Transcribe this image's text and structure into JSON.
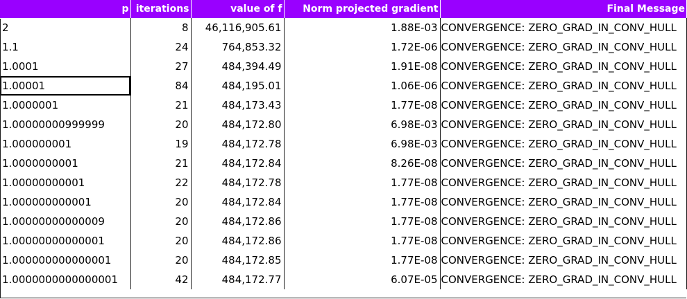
{
  "headers": {
    "p": "p",
    "iterations": "iterations",
    "value": "value of f",
    "norm": "Norm projected gradient",
    "message": "Final Message"
  },
  "selected_row_index": 3,
  "colors": {
    "header_bg": "#9900ff",
    "header_text": "#ffffff"
  },
  "rows": [
    {
      "p": "2",
      "iterations": "8",
      "value": "46,116,905.61",
      "norm": "1.88E-03",
      "message": "CONVERGENCE: ZERO_GRAD_IN_CONV_HULL"
    },
    {
      "p": "1.1",
      "iterations": "24",
      "value": "764,853.32",
      "norm": "1.72E-06",
      "message": "CONVERGENCE: ZERO_GRAD_IN_CONV_HULL"
    },
    {
      "p": "1.0001",
      "iterations": "27",
      "value": "484,394.49",
      "norm": "1.91E-08",
      "message": "CONVERGENCE: ZERO_GRAD_IN_CONV_HULL"
    },
    {
      "p": "1.00001",
      "iterations": "84",
      "value": "484,195.01",
      "norm": "1.06E-06",
      "message": "CONVERGENCE: ZERO_GRAD_IN_CONV_HULL"
    },
    {
      "p": "1.0000001",
      "iterations": "21",
      "value": "484,173.43",
      "norm": "1.77E-08",
      "message": "CONVERGENCE: ZERO_GRAD_IN_CONV_HULL"
    },
    {
      "p": "1.00000000999999",
      "iterations": "20",
      "value": "484,172.80",
      "norm": "6.98E-03",
      "message": "CONVERGENCE: ZERO_GRAD_IN_CONV_HULL"
    },
    {
      "p": "1.000000001",
      "iterations": "19",
      "value": "484,172.78",
      "norm": "6.98E-03",
      "message": "CONVERGENCE: ZERO_GRAD_IN_CONV_HULL"
    },
    {
      "p": "1.0000000001",
      "iterations": "21",
      "value": "484,172.84",
      "norm": "8.26E-08",
      "message": "CONVERGENCE: ZERO_GRAD_IN_CONV_HULL"
    },
    {
      "p": "1.00000000001",
      "iterations": "22",
      "value": "484,172.78",
      "norm": "1.77E-08",
      "message": "CONVERGENCE: ZERO_GRAD_IN_CONV_HULL"
    },
    {
      "p": "1.000000000001",
      "iterations": "20",
      "value": "484,172.84",
      "norm": "1.77E-08",
      "message": "CONVERGENCE: ZERO_GRAD_IN_CONV_HULL"
    },
    {
      "p": "1.00000000000009",
      "iterations": "20",
      "value": "484,172.86",
      "norm": "1.77E-08",
      "message": "CONVERGENCE: ZERO_GRAD_IN_CONV_HULL"
    },
    {
      "p": "1.00000000000001",
      "iterations": "20",
      "value": "484,172.86",
      "norm": "1.77E-08",
      "message": "CONVERGENCE: ZERO_GRAD_IN_CONV_HULL"
    },
    {
      "p": "1.000000000000001",
      "iterations": "20",
      "value": "484,172.85",
      "norm": "1.77E-08",
      "message": "CONVERGENCE: ZERO_GRAD_IN_CONV_HULL"
    },
    {
      "p": "1.0000000000000001",
      "iterations": "42",
      "value": "484,172.77",
      "norm": "6.07E-05",
      "message": "CONVERGENCE: ZERO_GRAD_IN_CONV_HULL"
    }
  ]
}
